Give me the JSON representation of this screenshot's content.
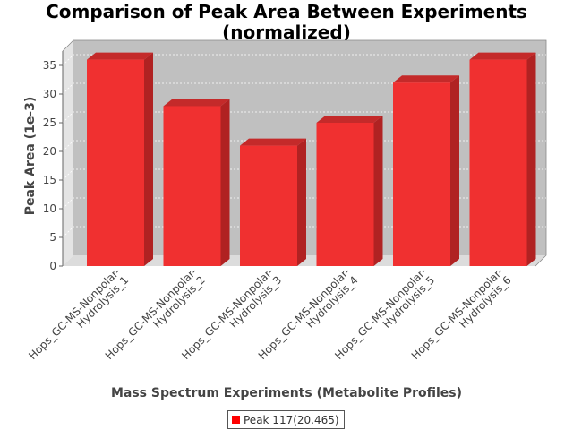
{
  "chart_data": {
    "type": "bar",
    "title": "Comparison of Peak Area Between Experiments (normalized)",
    "title_lines": [
      "Comparison of Peak Area Between Experiments",
      "(normalized)"
    ],
    "xlabel": "Mass Spectrum Experiments (Metabolite Profiles)",
    "ylabel": "Peak Area (1e-3)",
    "categories": [
      "Hops_GC-MS-Nonpolar-Hydrolysis_1",
      "Hops_GC-MS-Nonpolar-Hydrolysis_2",
      "Hops_GC-MS-Nonpolar-Hydrolysis_3",
      "Hops_GC-MS-Nonpolar-Hydrolysis_4",
      "Hops_GC-MS-Nonpolar-Hydrolysis_5",
      "Hops_GC-MS-Nonpolar-Hydrolysis_6"
    ],
    "category_lines": [
      [
        "Hops_GC-MS-Nonpolar-",
        "Hydrolysis_1"
      ],
      [
        "Hops_GC-MS-Nonpolar-",
        "Hydrolysis_2"
      ],
      [
        "Hops_GC-MS-Nonpolar-",
        "Hydrolysis_3"
      ],
      [
        "Hops_GC-MS-Nonpolar-",
        "Hydrolysis_4"
      ],
      [
        "Hops_GC-MS-Nonpolar-",
        "Hydrolysis_5"
      ],
      [
        "Hops_GC-MS-Nonpolar-",
        "Hydrolysis_6"
      ]
    ],
    "series": [
      {
        "name": "Peak 117(20.465)",
        "values": [
          36.0,
          27.9,
          21.0,
          25.0,
          32.0,
          36.0
        ]
      }
    ],
    "ylim": [
      0,
      37.5
    ],
    "yticks": [
      0,
      5,
      10,
      15,
      20,
      25,
      30,
      35
    ],
    "grid": true,
    "legend": "bottom",
    "style": "3d",
    "colors": {
      "bar": "#f03030",
      "bar_top": "#c42a2a",
      "bar_side": "#b02222",
      "plot_bg": "#c0c0c0",
      "wall_side": "#e4e4e4",
      "floor": "#dcdcdc"
    }
  }
}
